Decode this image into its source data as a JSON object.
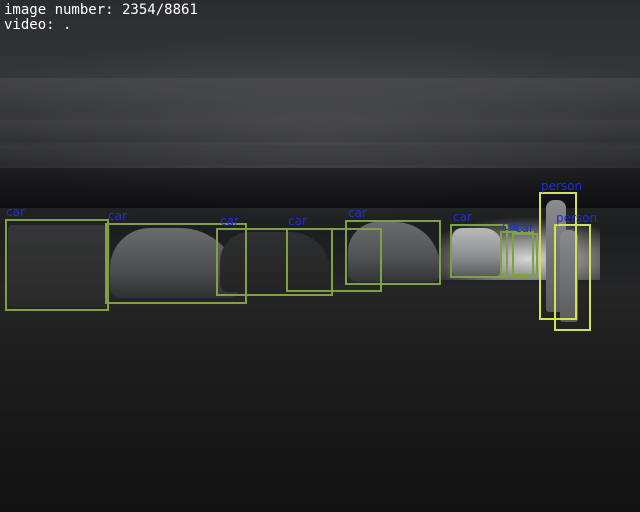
{
  "hud": {
    "image_number_line": "image number: 2354/8861",
    "video_line": "video: ."
  },
  "colors": {
    "car_box": "#7fa043",
    "person_box": "#d2e05a",
    "label_text": "#1f2fd8",
    "hud_text": "#ffffff"
  },
  "detections": [
    {
      "label": "car"
    },
    {
      "label": "car"
    },
    {
      "label": "car"
    },
    {
      "label": "car"
    },
    {
      "label": "car"
    },
    {
      "label": "car"
    },
    {
      "label": "car"
    },
    {
      "label": "car"
    },
    {
      "label": "person"
    },
    {
      "label": "person"
    }
  ]
}
